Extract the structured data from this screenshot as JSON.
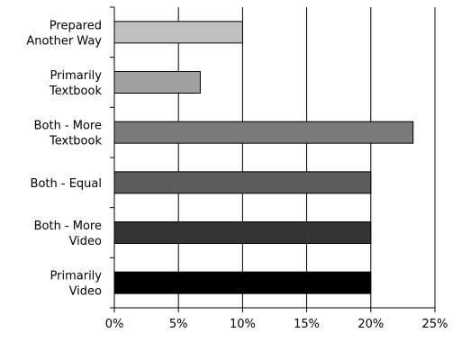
{
  "chart_data": {
    "type": "bar",
    "orientation": "horizontal",
    "categories": [
      [
        "Prepared",
        "Another Way"
      ],
      [
        "Primarily",
        "Textbook"
      ],
      [
        "Both - More",
        "Textbook"
      ],
      [
        "Both - Equal"
      ],
      [
        "Both - More",
        "Video"
      ],
      [
        "Primarily",
        "Video"
      ]
    ],
    "values": [
      10,
      6.7,
      23.3,
      20,
      20,
      20
    ],
    "value_unit": "%",
    "bar_colors": [
      "#c0c0c0",
      "#a0a0a0",
      "#7a7a7a",
      "#5c5c5c",
      "#333333",
      "#000000"
    ],
    "bar_edge_color": "#000000",
    "xlim": [
      0,
      25
    ],
    "xticks": [
      0,
      5,
      10,
      15,
      20,
      25
    ],
    "xtick_labels": [
      "0%",
      "5%",
      "10%",
      "15%",
      "20%",
      "25%"
    ],
    "title": "",
    "xlabel": "",
    "ylabel": "",
    "grid": "vertical",
    "legend": "none"
  }
}
